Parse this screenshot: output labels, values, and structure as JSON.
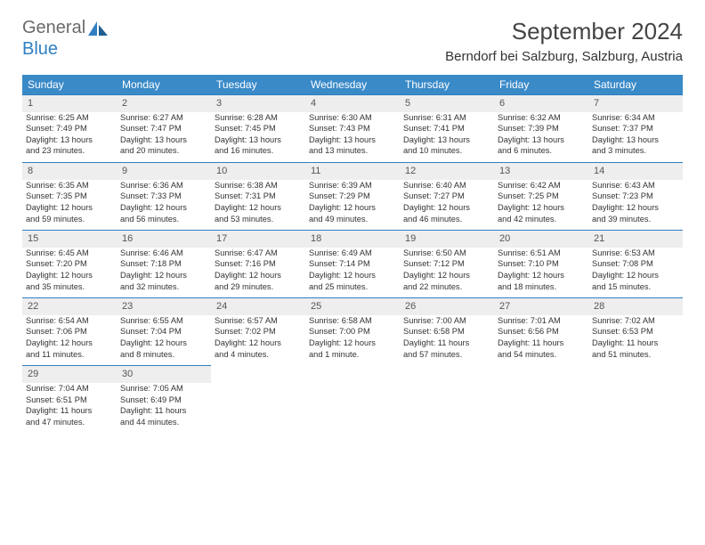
{
  "logo": {
    "general": "General",
    "blue": "Blue"
  },
  "title": "September 2024",
  "location": "Berndorf bei Salzburg, Salzburg, Austria",
  "colors": {
    "header_bg": "#3a8ac8",
    "header_text": "#ffffff",
    "daynum_bg": "#eeeeee",
    "border": "#2f7fc2",
    "logo_gray": "#6a6a6a",
    "logo_blue": "#2f7fc2"
  },
  "weekdays": [
    "Sunday",
    "Monday",
    "Tuesday",
    "Wednesday",
    "Thursday",
    "Friday",
    "Saturday"
  ],
  "weeks": [
    {
      "nums": [
        "1",
        "2",
        "3",
        "4",
        "5",
        "6",
        "7"
      ],
      "cells": [
        {
          "sunrise": "Sunrise: 6:25 AM",
          "sunset": "Sunset: 7:49 PM",
          "day1": "Daylight: 13 hours",
          "day2": "and 23 minutes."
        },
        {
          "sunrise": "Sunrise: 6:27 AM",
          "sunset": "Sunset: 7:47 PM",
          "day1": "Daylight: 13 hours",
          "day2": "and 20 minutes."
        },
        {
          "sunrise": "Sunrise: 6:28 AM",
          "sunset": "Sunset: 7:45 PM",
          "day1": "Daylight: 13 hours",
          "day2": "and 16 minutes."
        },
        {
          "sunrise": "Sunrise: 6:30 AM",
          "sunset": "Sunset: 7:43 PM",
          "day1": "Daylight: 13 hours",
          "day2": "and 13 minutes."
        },
        {
          "sunrise": "Sunrise: 6:31 AM",
          "sunset": "Sunset: 7:41 PM",
          "day1": "Daylight: 13 hours",
          "day2": "and 10 minutes."
        },
        {
          "sunrise": "Sunrise: 6:32 AM",
          "sunset": "Sunset: 7:39 PM",
          "day1": "Daylight: 13 hours",
          "day2": "and 6 minutes."
        },
        {
          "sunrise": "Sunrise: 6:34 AM",
          "sunset": "Sunset: 7:37 PM",
          "day1": "Daylight: 13 hours",
          "day2": "and 3 minutes."
        }
      ]
    },
    {
      "nums": [
        "8",
        "9",
        "10",
        "11",
        "12",
        "13",
        "14"
      ],
      "cells": [
        {
          "sunrise": "Sunrise: 6:35 AM",
          "sunset": "Sunset: 7:35 PM",
          "day1": "Daylight: 12 hours",
          "day2": "and 59 minutes."
        },
        {
          "sunrise": "Sunrise: 6:36 AM",
          "sunset": "Sunset: 7:33 PM",
          "day1": "Daylight: 12 hours",
          "day2": "and 56 minutes."
        },
        {
          "sunrise": "Sunrise: 6:38 AM",
          "sunset": "Sunset: 7:31 PM",
          "day1": "Daylight: 12 hours",
          "day2": "and 53 minutes."
        },
        {
          "sunrise": "Sunrise: 6:39 AM",
          "sunset": "Sunset: 7:29 PM",
          "day1": "Daylight: 12 hours",
          "day2": "and 49 minutes."
        },
        {
          "sunrise": "Sunrise: 6:40 AM",
          "sunset": "Sunset: 7:27 PM",
          "day1": "Daylight: 12 hours",
          "day2": "and 46 minutes."
        },
        {
          "sunrise": "Sunrise: 6:42 AM",
          "sunset": "Sunset: 7:25 PM",
          "day1": "Daylight: 12 hours",
          "day2": "and 42 minutes."
        },
        {
          "sunrise": "Sunrise: 6:43 AM",
          "sunset": "Sunset: 7:23 PM",
          "day1": "Daylight: 12 hours",
          "day2": "and 39 minutes."
        }
      ]
    },
    {
      "nums": [
        "15",
        "16",
        "17",
        "18",
        "19",
        "20",
        "21"
      ],
      "cells": [
        {
          "sunrise": "Sunrise: 6:45 AM",
          "sunset": "Sunset: 7:20 PM",
          "day1": "Daylight: 12 hours",
          "day2": "and 35 minutes."
        },
        {
          "sunrise": "Sunrise: 6:46 AM",
          "sunset": "Sunset: 7:18 PM",
          "day1": "Daylight: 12 hours",
          "day2": "and 32 minutes."
        },
        {
          "sunrise": "Sunrise: 6:47 AM",
          "sunset": "Sunset: 7:16 PM",
          "day1": "Daylight: 12 hours",
          "day2": "and 29 minutes."
        },
        {
          "sunrise": "Sunrise: 6:49 AM",
          "sunset": "Sunset: 7:14 PM",
          "day1": "Daylight: 12 hours",
          "day2": "and 25 minutes."
        },
        {
          "sunrise": "Sunrise: 6:50 AM",
          "sunset": "Sunset: 7:12 PM",
          "day1": "Daylight: 12 hours",
          "day2": "and 22 minutes."
        },
        {
          "sunrise": "Sunrise: 6:51 AM",
          "sunset": "Sunset: 7:10 PM",
          "day1": "Daylight: 12 hours",
          "day2": "and 18 minutes."
        },
        {
          "sunrise": "Sunrise: 6:53 AM",
          "sunset": "Sunset: 7:08 PM",
          "day1": "Daylight: 12 hours",
          "day2": "and 15 minutes."
        }
      ]
    },
    {
      "nums": [
        "22",
        "23",
        "24",
        "25",
        "26",
        "27",
        "28"
      ],
      "cells": [
        {
          "sunrise": "Sunrise: 6:54 AM",
          "sunset": "Sunset: 7:06 PM",
          "day1": "Daylight: 12 hours",
          "day2": "and 11 minutes."
        },
        {
          "sunrise": "Sunrise: 6:55 AM",
          "sunset": "Sunset: 7:04 PM",
          "day1": "Daylight: 12 hours",
          "day2": "and 8 minutes."
        },
        {
          "sunrise": "Sunrise: 6:57 AM",
          "sunset": "Sunset: 7:02 PM",
          "day1": "Daylight: 12 hours",
          "day2": "and 4 minutes."
        },
        {
          "sunrise": "Sunrise: 6:58 AM",
          "sunset": "Sunset: 7:00 PM",
          "day1": "Daylight: 12 hours",
          "day2": "and 1 minute."
        },
        {
          "sunrise": "Sunrise: 7:00 AM",
          "sunset": "Sunset: 6:58 PM",
          "day1": "Daylight: 11 hours",
          "day2": "and 57 minutes."
        },
        {
          "sunrise": "Sunrise: 7:01 AM",
          "sunset": "Sunset: 6:56 PM",
          "day1": "Daylight: 11 hours",
          "day2": "and 54 minutes."
        },
        {
          "sunrise": "Sunrise: 7:02 AM",
          "sunset": "Sunset: 6:53 PM",
          "day1": "Daylight: 11 hours",
          "day2": "and 51 minutes."
        }
      ]
    },
    {
      "nums": [
        "29",
        "30",
        "",
        "",
        "",
        "",
        ""
      ],
      "cells": [
        {
          "sunrise": "Sunrise: 7:04 AM",
          "sunset": "Sunset: 6:51 PM",
          "day1": "Daylight: 11 hours",
          "day2": "and 47 minutes."
        },
        {
          "sunrise": "Sunrise: 7:05 AM",
          "sunset": "Sunset: 6:49 PM",
          "day1": "Daylight: 11 hours",
          "day2": "and 44 minutes."
        },
        null,
        null,
        null,
        null,
        null
      ]
    }
  ]
}
